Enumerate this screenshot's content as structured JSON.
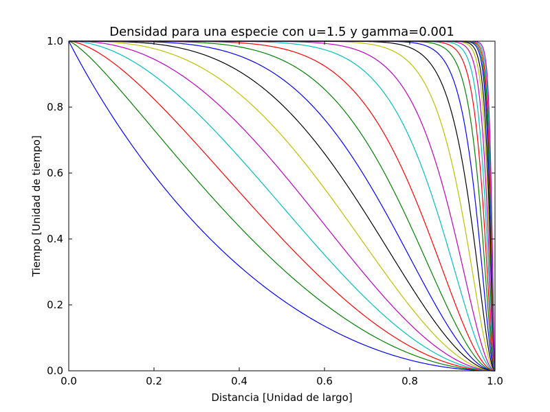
{
  "chart_data": {
    "type": "line",
    "title": "Densidad para una  especie con u=1.5 y gamma=0.001",
    "xlabel": "Distancia [Unidad de largo]",
    "ylabel": "Tiempo [Unidad de tiempo]",
    "xlim": [
      0.0,
      1.0
    ],
    "ylim": [
      0.0,
      1.0
    ],
    "xticks": [
      "0.0",
      "0.2",
      "0.4",
      "0.6",
      "0.8",
      "1.0"
    ],
    "yticks": [
      "0.0",
      "0.2",
      "0.4",
      "0.6",
      "0.8",
      "1.0"
    ],
    "grid": false,
    "legend": "none",
    "series": [
      {
        "color": "#0000ff",
        "midpoint": 0.26
      },
      {
        "color": "#008000",
        "midpoint": 0.355
      },
      {
        "color": "#ff0000",
        "midpoint": 0.43
      },
      {
        "color": "#00bfbf",
        "midpoint": 0.5
      },
      {
        "color": "#bf00bf",
        "midpoint": 0.565
      },
      {
        "color": "#bfbf00",
        "midpoint": 0.63
      },
      {
        "color": "#000000",
        "midpoint": 0.685
      },
      {
        "color": "#0000ff",
        "midpoint": 0.735
      },
      {
        "color": "#008000",
        "midpoint": 0.78
      },
      {
        "color": "#ff0000",
        "midpoint": 0.82
      },
      {
        "color": "#00bfbf",
        "midpoint": 0.86
      },
      {
        "color": "#bf00bf",
        "midpoint": 0.89
      },
      {
        "color": "#bfbf00",
        "midpoint": 0.92
      },
      {
        "color": "#000000",
        "midpoint": 0.94
      },
      {
        "color": "#0000ff",
        "midpoint": 0.955
      },
      {
        "color": "#008000",
        "midpoint": 0.965
      },
      {
        "color": "#ff0000",
        "midpoint": 0.972
      },
      {
        "color": "#00bfbf",
        "midpoint": 0.977
      },
      {
        "color": "#bf00bf",
        "midpoint": 0.981
      },
      {
        "color": "#bfbf00",
        "midpoint": 0.984
      },
      {
        "color": "#000000",
        "midpoint": 0.986
      },
      {
        "color": "#0000ff",
        "midpoint": 0.988
      },
      {
        "color": "#008000",
        "midpoint": 0.989
      },
      {
        "color": "#ff0000",
        "midpoint": 0.99
      },
      {
        "color": "#00bfbf",
        "midpoint": 0.991
      },
      {
        "color": "#bf00bf",
        "midpoint": 0.992
      }
    ]
  }
}
